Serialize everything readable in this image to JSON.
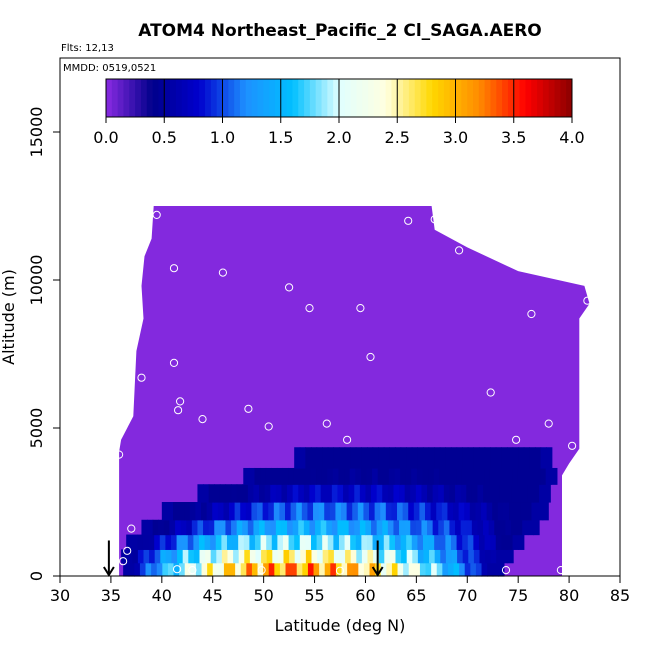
{
  "chart_data": {
    "type": "heatmap",
    "title": "ATOM4 Northeast_Pacific_2 Cl_SAGA.AERO",
    "flights_label": "Flts: 12,13",
    "dates_label": "MMDD: 0519,0521",
    "xlabel": "Latitude (deg N)",
    "ylabel": "Altitude (m)",
    "xlim": [
      30,
      85
    ],
    "ylim": [
      0,
      17500
    ],
    "x_ticks": [
      "30",
      "35",
      "40",
      "45",
      "50",
      "55",
      "60",
      "65",
      "70",
      "75",
      "80",
      "85"
    ],
    "y_ticks": [
      "0",
      "5000",
      "10000",
      "15000"
    ],
    "colorbar": {
      "range": [
        0,
        4
      ],
      "ticks": [
        "0.0",
        "0.5",
        "1.0",
        "1.5",
        "2.0",
        "2.5",
        "3.0",
        "3.5",
        "4.0"
      ],
      "stops": [
        "#8a2be2",
        "#00008b",
        "#0000cd",
        "#1e90ff",
        "#00bfff",
        "#e0ffff",
        "#ffffe0",
        "#ffd700",
        "#ff8c00",
        "#ff0000",
        "#8b0000"
      ]
    },
    "arrows_lat": [
      34.8,
      61.2
    ],
    "background_value": 0.02,
    "plume": [
      {
        "y0": 0,
        "y1": 450,
        "x0": 36.2,
        "x1": 73.2,
        "peak_lat": 53,
        "peak": 3.6
      },
      {
        "y0": 450,
        "y1": 900,
        "x0": 36.0,
        "x1": 74.0,
        "peak_lat": 52,
        "peak": 2.9
      },
      {
        "y0": 900,
        "y1": 1400,
        "x0": 36.5,
        "x1": 75.5,
        "peak_lat": 53,
        "peak": 2.2
      },
      {
        "y0": 1400,
        "y1": 1900,
        "x0": 38.0,
        "x1": 76.5,
        "peak_lat": 54,
        "peak": 1.7
      },
      {
        "y0": 1900,
        "y1": 2500,
        "x0": 40.0,
        "x1": 77.5,
        "peak_lat": 56,
        "peak": 1.3
      },
      {
        "y0": 2500,
        "y1": 3100,
        "x0": 43.5,
        "x1": 77.8,
        "peak_lat": 57,
        "peak": 0.9
      },
      {
        "y0": 3100,
        "y1": 3650,
        "x0": 48.0,
        "x1": 78.5,
        "peak_lat": 60,
        "peak": 0.55
      },
      {
        "y0": 3650,
        "y1": 4350,
        "x0": 53.0,
        "x1": 78.0,
        "peak_lat": 66,
        "peak": 0.35
      }
    ],
    "domain_outline": [
      [
        35.8,
        0
      ],
      [
        35.8,
        4200
      ],
      [
        36.0,
        4600
      ],
      [
        37.2,
        5400
      ],
      [
        37.5,
        7600
      ],
      [
        38.2,
        8700
      ],
      [
        38.0,
        9800
      ],
      [
        38.3,
        10800
      ],
      [
        39.0,
        11400
      ],
      [
        39.2,
        12500
      ],
      [
        66.5,
        12500
      ],
      [
        66.8,
        11700
      ],
      [
        70.0,
        11100
      ],
      [
        75.0,
        10300
      ],
      [
        81.5,
        9800
      ],
      [
        82.0,
        9200
      ],
      [
        81.0,
        8700
      ],
      [
        81.0,
        4300
      ],
      [
        80.0,
        3800
      ],
      [
        79.3,
        3400
      ],
      [
        79.3,
        0
      ]
    ],
    "sample_points": [
      [
        39.5,
        12200
      ],
      [
        64.2,
        12000
      ],
      [
        66.8,
        12050
      ],
      [
        69.2,
        11000
      ],
      [
        41.2,
        10400
      ],
      [
        46.0,
        10250
      ],
      [
        52.5,
        9750
      ],
      [
        54.5,
        9050
      ],
      [
        59.5,
        9050
      ],
      [
        76.3,
        8850
      ],
      [
        81.8,
        9300
      ],
      [
        38.0,
        6700
      ],
      [
        41.2,
        7200
      ],
      [
        60.5,
        7400
      ],
      [
        41.8,
        5900
      ],
      [
        41.6,
        5600
      ],
      [
        44.0,
        5300
      ],
      [
        48.5,
        5650
      ],
      [
        50.5,
        5050
      ],
      [
        56.2,
        5150
      ],
      [
        58.2,
        4600
      ],
      [
        72.3,
        6200
      ],
      [
        74.8,
        4600
      ],
      [
        78.0,
        5150
      ],
      [
        80.3,
        4400
      ],
      [
        35.8,
        4100
      ],
      [
        37.0,
        1600
      ],
      [
        36.6,
        850
      ],
      [
        36.2,
        500
      ],
      [
        41.5,
        230
      ],
      [
        43.0,
        200
      ],
      [
        49.8,
        200
      ],
      [
        57.5,
        180
      ],
      [
        73.8,
        200
      ],
      [
        79.2,
        200
      ]
    ]
  }
}
